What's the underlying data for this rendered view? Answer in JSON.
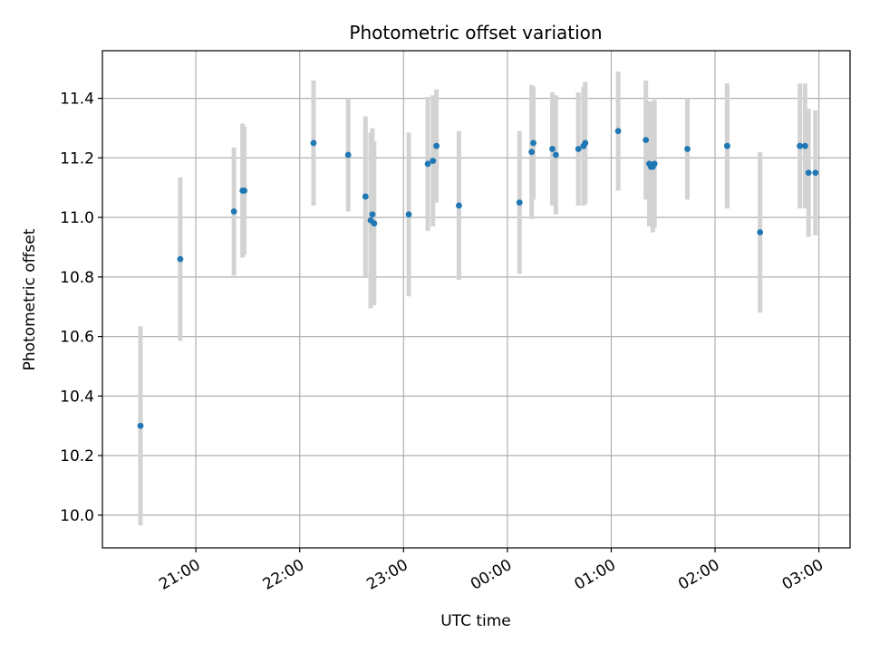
{
  "chart_data": {
    "type": "scatter",
    "title": "Photometric offset variation",
    "xlabel": "UTC time",
    "ylabel": "Photometric offset",
    "x_ticks": [
      "21:00",
      "22:00",
      "23:00",
      "00:00",
      "01:00",
      "02:00",
      "03:00"
    ],
    "y_ticks": [
      "10.0",
      "10.2",
      "10.4",
      "10.6",
      "10.8",
      "11.0",
      "11.2",
      "11.4"
    ],
    "xlim": [
      "20:06",
      "03:18"
    ],
    "ylim": [
      9.89,
      11.56
    ],
    "grid": true,
    "errorbar_color": "#d3d3d3",
    "point_color": "#1f77b4",
    "points": [
      {
        "x": "20:28",
        "y": 10.3,
        "err": 0.335
      },
      {
        "x": "20:51",
        "y": 10.86,
        "err": 0.275
      },
      {
        "x": "21:22",
        "y": 11.02,
        "err": 0.215
      },
      {
        "x": "21:27",
        "y": 11.09,
        "err": 0.225
      },
      {
        "x": "21:28",
        "y": 11.09,
        "err": 0.215
      },
      {
        "x": "22:08",
        "y": 11.25,
        "err": 0.21
      },
      {
        "x": "22:28",
        "y": 11.21,
        "err": 0.19
      },
      {
        "x": "22:38",
        "y": 11.07,
        "err": 0.27
      },
      {
        "x": "22:41",
        "y": 10.99,
        "err": 0.295
      },
      {
        "x": "22:42",
        "y": 11.01,
        "err": 0.29
      },
      {
        "x": "22:43",
        "y": 10.98,
        "err": 0.275
      },
      {
        "x": "23:03",
        "y": 11.01,
        "err": 0.275
      },
      {
        "x": "23:14",
        "y": 11.18,
        "err": 0.225
      },
      {
        "x": "23:17",
        "y": 11.19,
        "err": 0.22
      },
      {
        "x": "23:19",
        "y": 11.24,
        "err": 0.19
      },
      {
        "x": "23:32",
        "y": 11.04,
        "err": 0.25
      },
      {
        "x": "00:07",
        "y": 11.05,
        "err": 0.24
      },
      {
        "x": "00:14",
        "y": 11.22,
        "err": 0.225
      },
      {
        "x": "00:15",
        "y": 11.25,
        "err": 0.19
      },
      {
        "x": "00:26",
        "y": 11.23,
        "err": 0.19
      },
      {
        "x": "00:28",
        "y": 11.21,
        "err": 0.2
      },
      {
        "x": "00:41",
        "y": 11.23,
        "err": 0.19
      },
      {
        "x": "00:44",
        "y": 11.24,
        "err": 0.2
      },
      {
        "x": "00:45",
        "y": 11.25,
        "err": 0.205
      },
      {
        "x": "01:04",
        "y": 11.29,
        "err": 0.2
      },
      {
        "x": "01:20",
        "y": 11.26,
        "err": 0.2
      },
      {
        "x": "01:22",
        "y": 11.18,
        "err": 0.21
      },
      {
        "x": "01:23",
        "y": 11.17,
        "err": 0.2
      },
      {
        "x": "01:24",
        "y": 11.17,
        "err": 0.22
      },
      {
        "x": "01:25",
        "y": 11.18,
        "err": 0.215
      },
      {
        "x": "01:44",
        "y": 11.23,
        "err": 0.17
      },
      {
        "x": "02:07",
        "y": 11.24,
        "err": 0.2
      },
      {
        "x": "02:07",
        "y": 11.24,
        "err": 0.21
      },
      {
        "x": "02:26",
        "y": 10.95,
        "err": 0.27
      },
      {
        "x": "02:49",
        "y": 11.24,
        "err": 0.21
      },
      {
        "x": "02:52",
        "y": 11.24,
        "err": 0.21
      },
      {
        "x": "02:54",
        "y": 11.15,
        "err": 0.215
      },
      {
        "x": "02:58",
        "y": 11.15,
        "err": 0.21
      }
    ]
  }
}
